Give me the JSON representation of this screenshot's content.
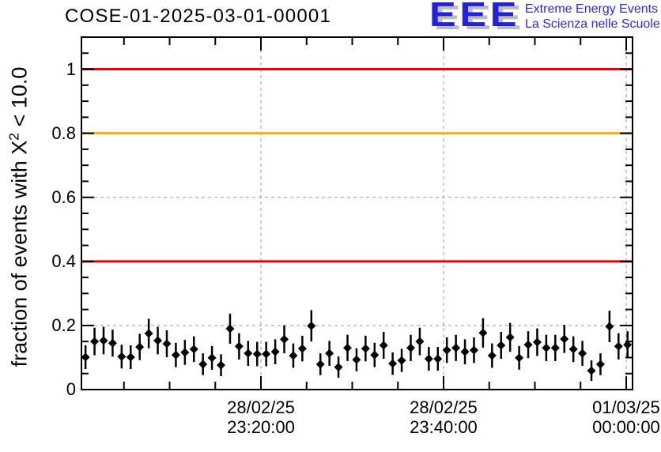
{
  "logo": {
    "acronym": "EEE",
    "line1": "Extreme Energy Events",
    "line2": "La Scienza nelle Scuole",
    "color": "#2222dd",
    "shadow_color": "#bdbdbd"
  },
  "chart_data": {
    "type": "scatter",
    "title": "COSE-01-2025-03-01-00001",
    "ylabel": {
      "prefix": "fraction of events with X",
      "sup": "2",
      "suffix": " < 10.0",
      "full": "fraction of events with X^2 < 10.0"
    },
    "ylim": [
      0,
      1.1
    ],
    "y_ticks": [
      {
        "v": 0,
        "label": "0"
      },
      {
        "v": 0.2,
        "label": "0.2"
      },
      {
        "v": 0.4,
        "label": "0.4"
      },
      {
        "v": 0.6,
        "label": "0.6"
      },
      {
        "v": 0.8,
        "label": "0.8"
      },
      {
        "v": 1,
        "label": "1"
      }
    ],
    "y_minor_step": 0.05,
    "x_axis": {
      "major_tick_labels": [
        {
          "date": "28/02/25",
          "time": "23:20:00"
        },
        {
          "date": "28/02/25",
          "time": "23:40:00"
        },
        {
          "date": "01/03/25",
          "time": "00:00:00"
        }
      ],
      "minor_tick_interval_minutes": 5,
      "major_tick_interval_minutes": 20,
      "points_start_time_approx": "28/02/25 23:01:00",
      "point_interval_seconds": 60
    },
    "reference_lines": [
      {
        "y": 1.0,
        "color": "#ee0000"
      },
      {
        "y": 0.8,
        "color": "#ffaa00"
      },
      {
        "y": 0.4,
        "color": "#ee0000"
      }
    ],
    "grid": {
      "color": "#999999",
      "style": "dashed",
      "horizontal_at": [
        0.2,
        0.4,
        0.6,
        0.8,
        1.0
      ],
      "vertical_at_major_ticks": true
    },
    "marker": {
      "shape": "diamond",
      "color": "#000000"
    },
    "series": [
      {
        "name": "fraction of events with chi2 < 10.0",
        "values": [
          0.101,
          0.15,
          0.153,
          0.145,
          0.103,
          0.101,
          0.133,
          0.175,
          0.153,
          0.143,
          0.108,
          0.116,
          0.126,
          0.079,
          0.099,
          0.076,
          0.19,
          0.135,
          0.113,
          0.111,
          0.111,
          0.118,
          0.157,
          0.106,
          0.128,
          0.199,
          0.079,
          0.113,
          0.07,
          0.13,
          0.093,
          0.128,
          0.108,
          0.138,
          0.081,
          0.091,
          0.13,
          0.15,
          0.096,
          0.096,
          0.123,
          0.13,
          0.118,
          0.123,
          0.177,
          0.106,
          0.138,
          0.163,
          0.099,
          0.14,
          0.148,
          0.13,
          0.13,
          0.158,
          0.126,
          0.113,
          0.059,
          0.079,
          0.197,
          0.135,
          0.14
        ],
        "errors": [
          0.037,
          0.043,
          0.043,
          0.042,
          0.037,
          0.037,
          0.041,
          0.046,
          0.043,
          0.042,
          0.038,
          0.039,
          0.04,
          0.034,
          0.037,
          0.034,
          0.047,
          0.041,
          0.039,
          0.038,
          0.038,
          0.039,
          0.044,
          0.038,
          0.04,
          0.049,
          0.034,
          0.039,
          0.033,
          0.041,
          0.036,
          0.04,
          0.038,
          0.042,
          0.035,
          0.036,
          0.041,
          0.043,
          0.037,
          0.037,
          0.04,
          0.041,
          0.039,
          0.04,
          0.046,
          0.038,
          0.042,
          0.045,
          0.037,
          0.042,
          0.043,
          0.041,
          0.041,
          0.044,
          0.04,
          0.039,
          0.032,
          0.034,
          0.049,
          0.041,
          0.042
        ]
      }
    ]
  }
}
